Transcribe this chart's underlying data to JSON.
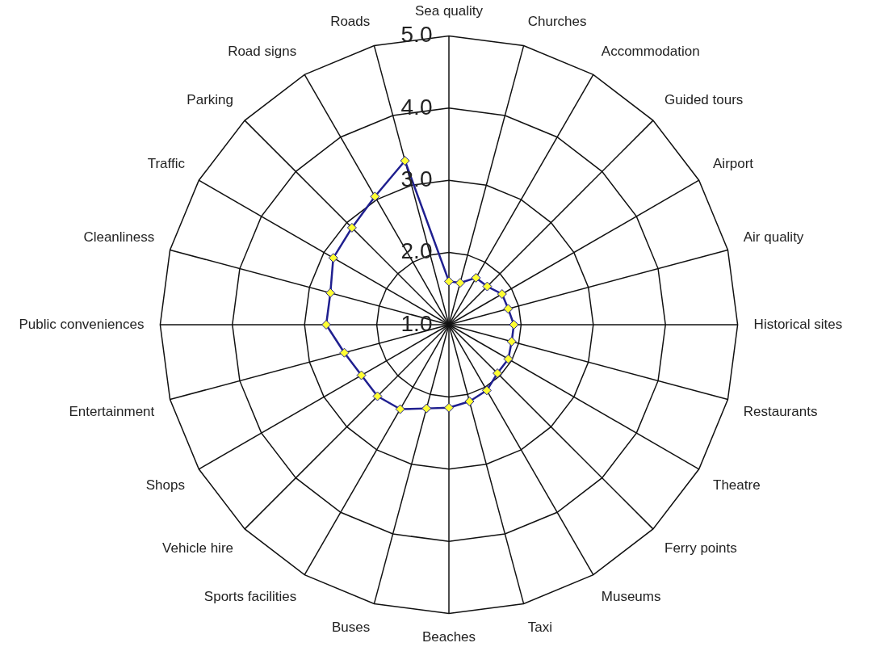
{
  "chart_data": {
    "type": "radar",
    "categories": [
      "Sea quality",
      "Churches",
      "Accommodation",
      "Guided tours",
      "Airport",
      "Air quality",
      "Historical sites",
      "Restaurants",
      "Theatre",
      "Ferry points",
      "Museums",
      "Taxi",
      "Beaches",
      "Buses",
      "Sports facilities",
      "Vehicle hire",
      "Shops",
      "Entertainment",
      "Public conveniences",
      "Cleanliness",
      "Traffic",
      "Parking",
      "Road signs",
      "Roads"
    ],
    "series": [
      {
        "color": "#1f1f8f",
        "values": [
          1.6,
          1.6,
          1.75,
          1.75,
          1.85,
          1.85,
          1.9,
          1.9,
          1.95,
          1.95,
          2.05,
          2.1,
          2.15,
          2.2,
          2.35,
          2.4,
          2.4,
          2.5,
          2.7,
          2.7,
          2.85,
          2.9,
          3.05,
          3.35
        ]
      }
    ],
    "ylim": [
      1,
      5
    ],
    "yticks": [
      {
        "value": 1,
        "label": "1.0"
      },
      {
        "value": 2,
        "label": "2.0"
      },
      {
        "value": 3,
        "label": "3.0"
      },
      {
        "value": 4,
        "label": "4.0"
      },
      {
        "value": 5,
        "label": "5.0"
      }
    ],
    "grid": true,
    "legend": false,
    "marker": "diamond"
  }
}
